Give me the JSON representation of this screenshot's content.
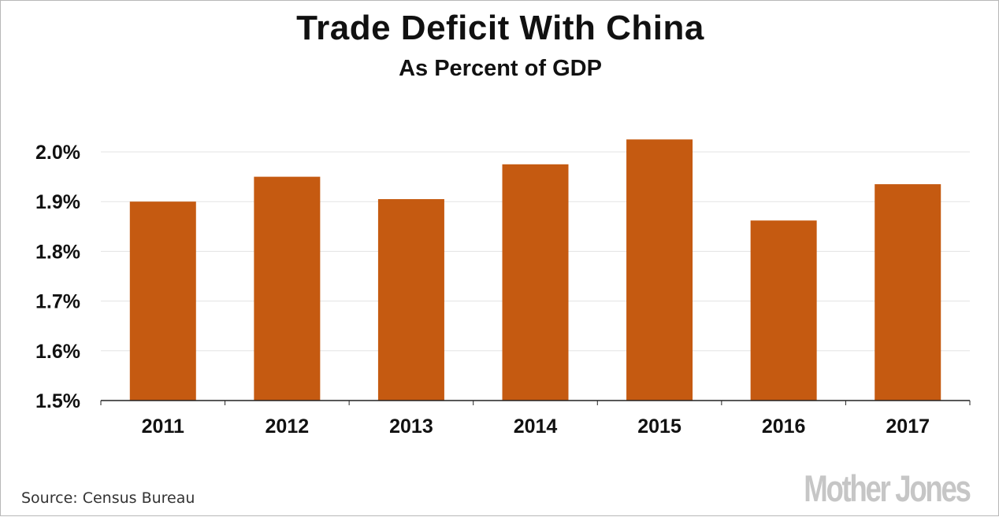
{
  "chart_data": {
    "type": "bar",
    "title": "Trade Deficit With China",
    "subtitle": "As Percent of GDP",
    "categories": [
      "2011",
      "2012",
      "2013",
      "2014",
      "2015",
      "2016",
      "2017"
    ],
    "values": [
      1.9,
      1.95,
      1.905,
      1.975,
      2.025,
      1.862,
      1.935
    ],
    "ylim": [
      1.5,
      2.0
    ],
    "yticks": [
      1.5,
      1.6,
      1.7,
      1.8,
      1.9,
      2.0
    ],
    "ytick_labels": [
      "1.5%",
      "1.6%",
      "1.7%",
      "1.8%",
      "1.9%",
      "2.0%"
    ],
    "xlabel": "",
    "ylabel": "",
    "grid": true,
    "legend": "none",
    "bar_color": "#c55a11"
  },
  "source": "Source:  Census Bureau",
  "logo": "Mother Jones"
}
